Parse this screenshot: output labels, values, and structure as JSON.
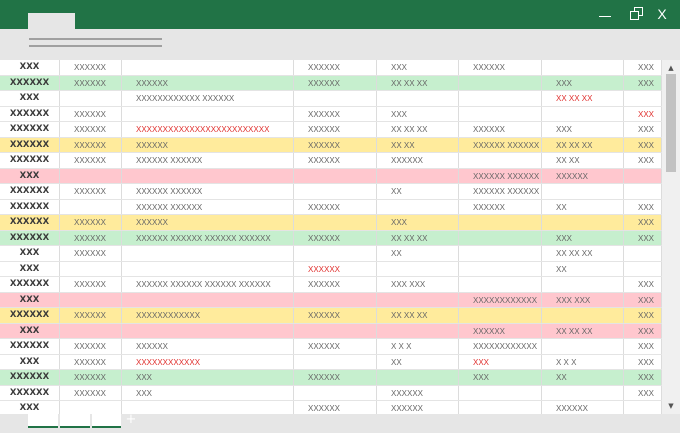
{
  "window": {
    "minimize_label": "—",
    "close_label": "X"
  },
  "colors": {
    "brand": "#217346",
    "good": "#c6efce",
    "neutral": "#ffeb9c",
    "bad": "#ffc7ce",
    "error_text": "#e0302e"
  },
  "sheet": {
    "add_sheet_label": "+",
    "rows": [
      {
        "style": "plain",
        "cells": [
          "XXX",
          "XXXXXX",
          "",
          "XXXXXX",
          "XXX",
          "XXXXXX",
          "",
          "XXX"
        ],
        "err": []
      },
      {
        "style": "green",
        "cells": [
          "XXXXXX",
          "XXXXXX",
          "XXXXXX",
          "XXXXXX",
          "XX XX XX",
          "",
          "XXX",
          "XXX"
        ],
        "err": []
      },
      {
        "style": "plain",
        "cells": [
          "XXX",
          "",
          "XXXXXXXXXXXX XXXXXX",
          "",
          "",
          "",
          "XX XX XX",
          ""
        ],
        "err": [
          6
        ]
      },
      {
        "style": "plain",
        "cells": [
          "XXXXXX",
          "XXXXXX",
          "",
          "XXXXXX",
          "XXX",
          "",
          "",
          "XXX"
        ],
        "err": [
          7
        ]
      },
      {
        "style": "plain",
        "cells": [
          "XXXXXX",
          "XXXXXX",
          "XXXXXXXXXXXXXXXXXXXXXXXXX",
          "XXXXXX",
          "XX XX XX",
          "XXXXXX",
          "XXX",
          "XXX"
        ],
        "err": [
          2
        ]
      },
      {
        "style": "yellow",
        "cells": [
          "XXXXXX",
          "XXXXXX",
          "XXXXXX",
          "XXXXXX",
          "XX XX",
          "XXXXXX XXXXXX",
          "XX XX XX",
          "XXX"
        ],
        "err": []
      },
      {
        "style": "plain",
        "cells": [
          "XXXXXX",
          "XXXXXX",
          "XXXXXX XXXXXX",
          "XXXXXX",
          "XXXXXX",
          "",
          "XX XX",
          "XXX"
        ],
        "err": []
      },
      {
        "style": "red",
        "cells": [
          "XXX",
          "",
          "",
          "",
          "",
          "XXXXXX XXXXXX",
          "XXXXXX",
          ""
        ],
        "err": []
      },
      {
        "style": "plain",
        "cells": [
          "XXXXXX",
          "XXXXXX",
          "XXXXXX XXXXXX",
          "",
          "XX",
          "XXXXXX XXXXXX",
          "",
          ""
        ],
        "err": []
      },
      {
        "style": "plain",
        "cells": [
          "XXXXXX",
          "",
          "XXXXXX XXXXXX",
          "XXXXXX",
          "",
          "XXXXXX",
          "XX",
          "XXX"
        ],
        "err": []
      },
      {
        "style": "yellow",
        "cells": [
          "XXXXXX",
          "XXXXXX",
          "XXXXXX",
          "",
          "XXX",
          "",
          "",
          "XXX"
        ],
        "err": []
      },
      {
        "style": "green",
        "cells": [
          "XXXXXX",
          "XXXXXX",
          "XXXXXX XXXXXX XXXXXX XXXXXX",
          "XXXXXX",
          "XX XX XX",
          "",
          "XXX",
          "XXX"
        ],
        "err": []
      },
      {
        "style": "plain",
        "cells": [
          "XXX",
          "XXXXXX",
          "",
          "",
          "XX",
          "",
          "XX XX XX",
          ""
        ],
        "err": []
      },
      {
        "style": "plain",
        "cells": [
          "XXX",
          "",
          "",
          "XXXXXX",
          "",
          "",
          "XX",
          ""
        ],
        "err": [
          3
        ]
      },
      {
        "style": "plain",
        "cells": [
          "XXXXXX",
          "XXXXXX",
          "XXXXXX XXXXXX XXXXXX XXXXXX",
          "XXXXXX",
          "XXX XXX",
          "",
          "",
          "XXX"
        ],
        "err": []
      },
      {
        "style": "red",
        "cells": [
          "XXX",
          "",
          "",
          "",
          "",
          "XXXXXXXXXXXX",
          "XXX XXX",
          "XXX"
        ],
        "err": []
      },
      {
        "style": "yellow",
        "cells": [
          "XXXXXX",
          "XXXXXX",
          "XXXXXXXXXXXX",
          "XXXXXX",
          "XX XX XX",
          "",
          "",
          "XXX"
        ],
        "err": []
      },
      {
        "style": "red",
        "cells": [
          "XXX",
          "",
          "",
          "",
          "",
          "XXXXXX",
          "XX XX XX",
          "XXX"
        ],
        "err": []
      },
      {
        "style": "plain",
        "cells": [
          "XXXXXX",
          "XXXXXX",
          "XXXXXX",
          "XXXXXX",
          "X X X",
          "XXXXXXXXXXXX",
          "",
          "XXX"
        ],
        "err": []
      },
      {
        "style": "plain",
        "cells": [
          "XXX",
          "XXXXXX",
          "XXXXXXXXXXXX",
          "",
          "XX",
          "XXX",
          "X X X",
          "XXX"
        ],
        "err": [
          2,
          5
        ]
      },
      {
        "style": "green",
        "cells": [
          "XXXXXX",
          "XXXXXX",
          "XXX",
          "XXXXXX",
          "",
          "XXX",
          "XX",
          "XXX"
        ],
        "err": []
      },
      {
        "style": "plain",
        "cells": [
          "XXXXXX",
          "XXXXXX",
          "XXX",
          "",
          "XXXXXX",
          "",
          "",
          "XXX"
        ],
        "err": []
      },
      {
        "style": "plain",
        "cells": [
          "XXX",
          "",
          "",
          "XXXXXX",
          "XXXXXX",
          "",
          "XXXXXX",
          ""
        ],
        "err": []
      }
    ]
  }
}
